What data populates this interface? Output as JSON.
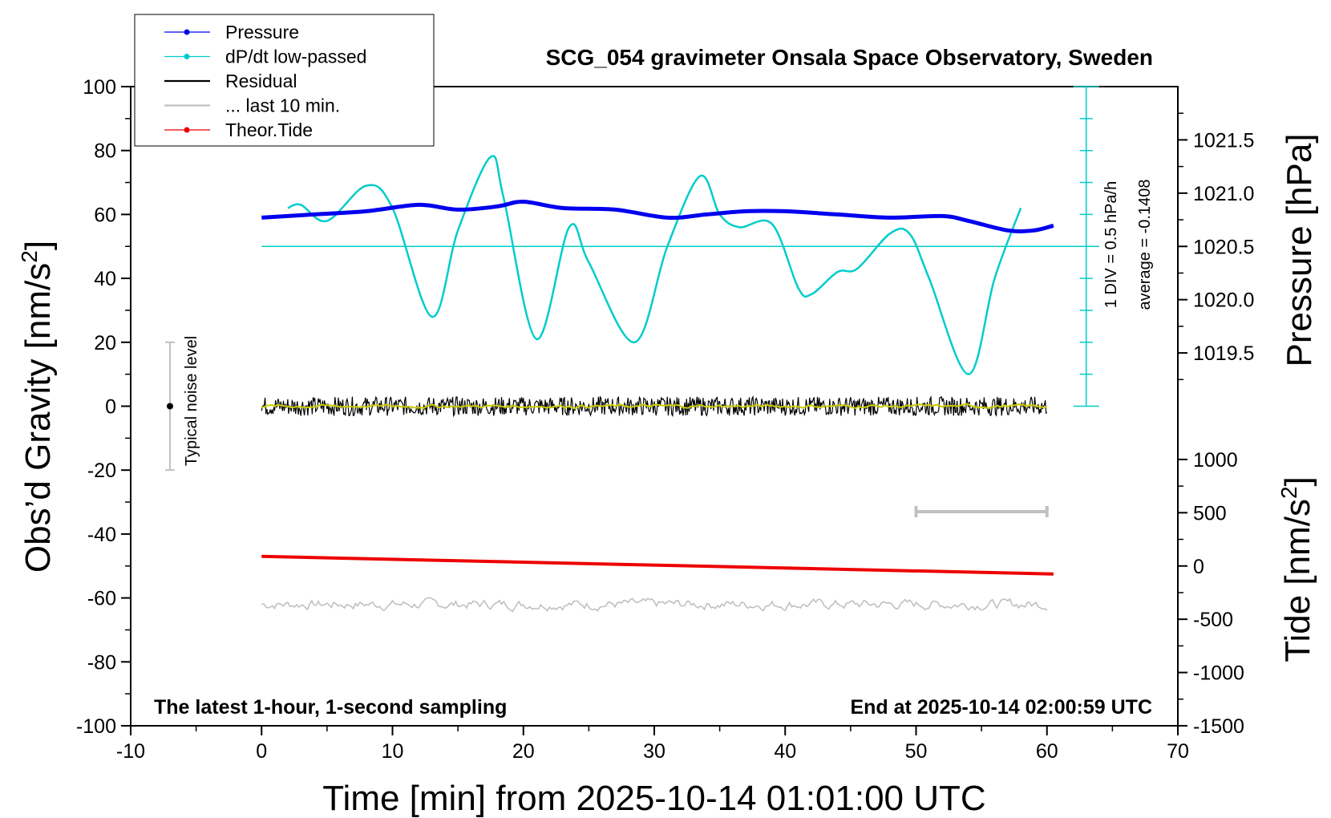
{
  "chart_data": {
    "type": "line",
    "title": "SCG_054 gravimeter Onsala Space Observatory, Sweden",
    "xlabel": "Time [min] from 2025-10-14 01:01:00 UTC",
    "ylabel_left": "Obs’d Gravity [nm/s",
    "ylabel_right_top": "Pressure [hPa]",
    "ylabel_right_bottom": "Tide [nm/s",
    "superscript": "2",
    "bracket": "]",
    "footer_left": "The latest 1-hour, 1-second sampling",
    "footer_right": "End at 2025-10-14 02:00:59 UTC",
    "noise_label": "Typical noise level",
    "div_label": "1 DIV = 0.5 hPa/h",
    "average_label": "average = -0.1408",
    "xlim": [
      -10,
      70
    ],
    "ylim": [
      -100,
      100
    ],
    "x_ticks": [
      "-10",
      "0",
      "10",
      "20",
      "30",
      "40",
      "50",
      "60",
      "70"
    ],
    "y_ticks": [
      "-100",
      "-80",
      "-60",
      "-40",
      "-20",
      "0",
      "20",
      "40",
      "60",
      "80",
      "100"
    ],
    "pressure_ticks": [
      "1019.5",
      "1020.0",
      "1020.5",
      "1021.0",
      "1021.5"
    ],
    "pressure_tick_values": [
      1019.5,
      1020.0,
      1020.5,
      1021.0,
      1021.5
    ],
    "pressure_axis_map": {
      "value_at_gravity_0": 1019.0,
      "value_at_gravity_100": 1022.0
    },
    "tide_ticks": [
      "1000",
      "500",
      "0",
      "-500",
      "-1000",
      "-1500"
    ],
    "tide_tick_values": [
      1000,
      500,
      0,
      -500,
      -1000,
      -1500
    ],
    "tide_axis_map": {
      "value_at_gravity_-100": -1500,
      "value_at_gravity_0": 1500
    },
    "legend": [
      {
        "label": "Pressure",
        "color": "#0000ee",
        "marker": true
      },
      {
        "label": "dP/dt low-passed",
        "color": "#00cccc",
        "marker": true
      },
      {
        "label": "Residual",
        "color": "#000000",
        "marker": false
      },
      {
        "label": "... last 10 min.",
        "color": "#c0c0c0",
        "marker": false
      },
      {
        "label": "Theor.Tide",
        "color": "#ee0000",
        "marker": true
      }
    ],
    "series": [
      {
        "name": "Pressure",
        "color": "#0000ee",
        "x": [
          0,
          4,
          8,
          12,
          15,
          18,
          20,
          23,
          27,
          31,
          34,
          37,
          40,
          44,
          48,
          52,
          54,
          57,
          59,
          60.5
        ],
        "y": [
          59,
          60,
          61,
          63,
          61.5,
          62.5,
          64,
          62,
          61.5,
          59,
          60,
          61,
          61,
          60,
          59,
          59.5,
          58,
          55,
          55,
          56.5
        ]
      },
      {
        "name": "dP/dt low-passed",
        "color": "#00cccc",
        "x": [
          2,
          3,
          5,
          8,
          10,
          13,
          15,
          17.5,
          18.5,
          21,
          23.5,
          25,
          28.5,
          31,
          33.5,
          35,
          36.5,
          39,
          41,
          42,
          44,
          45.5,
          48,
          49.5,
          51,
          54,
          56,
          58
        ],
        "y": [
          62,
          63,
          58,
          69,
          62,
          28,
          55,
          78,
          65,
          21,
          56,
          45,
          20,
          50,
          72,
          60,
          56,
          57,
          37,
          35,
          42,
          43,
          54,
          54,
          40,
          10,
          40,
          62
        ]
      },
      {
        "name": "dP/dt zero line",
        "color": "#00cccc",
        "x": [
          0,
          64
        ],
        "y": [
          50,
          50
        ]
      },
      {
        "name": "Residual",
        "color": "#000000",
        "x_range": [
          0,
          60
        ],
        "y_center": 0,
        "amplitude": 3
      },
      {
        "name": "Residual smoothed",
        "color": "#cccc00",
        "x_range": [
          0,
          60
        ],
        "y_center": 0,
        "amplitude": 1
      },
      {
        "name": "... last 10 min.",
        "color": "#c0c0c0",
        "x_range": [
          0,
          60
        ],
        "y_center": -62,
        "amplitude": 3
      },
      {
        "name": "Theor.Tide",
        "color": "#ee0000",
        "x": [
          0,
          60.5
        ],
        "y": [
          -47,
          -52.5
        ]
      }
    ],
    "last10_bar": {
      "x": [
        50,
        60
      ],
      "y": -33
    },
    "noise_bar": {
      "x": -7,
      "y": [
        -20,
        20
      ]
    },
    "div_axis": {
      "x": 63,
      "y": [
        0,
        100
      ]
    }
  }
}
